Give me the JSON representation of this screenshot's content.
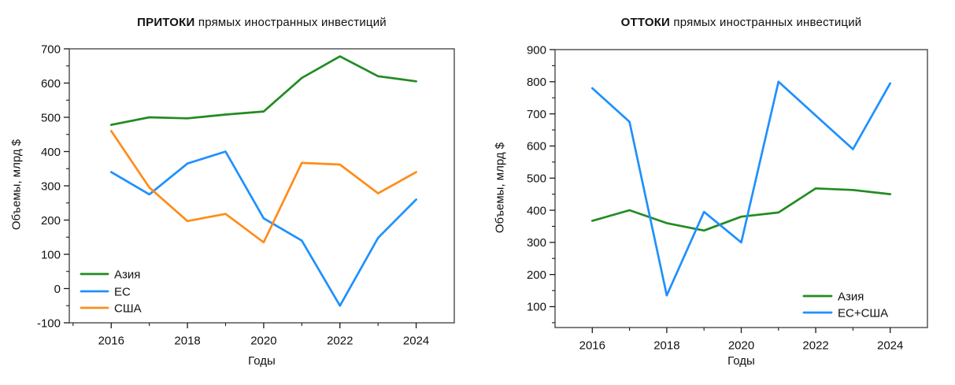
{
  "figure": {
    "background": "#ffffff"
  },
  "charts": [
    {
      "title_bold": "ПРИТОКИ",
      "title_rest": "прямых иностранных инвестиций"
    },
    {
      "title_bold": "ОТТОКИ",
      "title_rest": "прямых иностранных инвестиций"
    }
  ],
  "chart_data": [
    {
      "type": "line",
      "title": "ПРИТОКИ прямых иностранных инвестиций",
      "xlabel": "Годы",
      "ylabel": "Объемы, млрд $",
      "x": [
        2016,
        2017,
        2018,
        2019,
        2020,
        2021,
        2022,
        2023,
        2024
      ],
      "xticks": [
        2016,
        2018,
        2020,
        2022,
        2024
      ],
      "yticks": [
        -100,
        0,
        100,
        200,
        300,
        400,
        500,
        600,
        700
      ],
      "xlim": [
        2014.9,
        2025
      ],
      "ylim": [
        -100,
        700
      ],
      "grid": false,
      "legend_position": "bottom-left",
      "series": [
        {
          "name": "Азия",
          "color": "#228B22",
          "values": [
            478,
            500,
            497,
            508,
            517,
            615,
            678,
            620,
            605
          ]
        },
        {
          "name": "ЕС",
          "color": "#1E90FF",
          "values": [
            340,
            275,
            365,
            400,
            205,
            140,
            -50,
            148,
            260
          ]
        },
        {
          "name": "США",
          "color": "#FF8C1A",
          "values": [
            460,
            295,
            197,
            218,
            135,
            367,
            362,
            278,
            340
          ]
        }
      ]
    },
    {
      "type": "line",
      "title": "ОТТОКИ прямых иностранных инвестиций",
      "xlabel": "Годы",
      "ylabel": "Объемы, млрд $",
      "x": [
        2016,
        2017,
        2018,
        2019,
        2020,
        2021,
        2022,
        2023,
        2024
      ],
      "xticks": [
        2016,
        2018,
        2020,
        2022,
        2024
      ],
      "yticks": [
        100,
        200,
        300,
        400,
        500,
        600,
        700,
        800,
        900
      ],
      "xlim": [
        2015,
        2025
      ],
      "ylim": [
        35,
        900
      ],
      "grid": false,
      "legend_position": "bottom-right",
      "series": [
        {
          "name": "Азия",
          "color": "#228B22",
          "values": [
            367,
            400,
            360,
            337,
            380,
            393,
            468,
            463,
            450
          ]
        },
        {
          "name": "ЕС+США",
          "color": "#1E90FF",
          "values": [
            780,
            675,
            135,
            395,
            300,
            800,
            695,
            590,
            795
          ]
        }
      ]
    }
  ]
}
